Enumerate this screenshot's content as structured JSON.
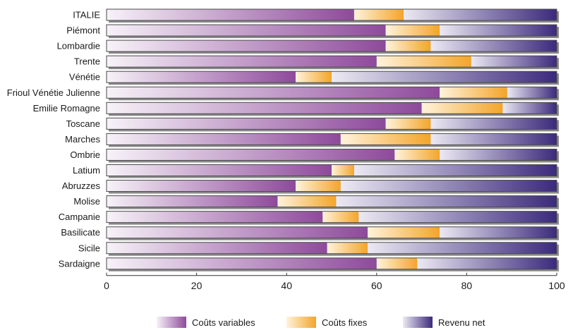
{
  "chart_data": {
    "type": "bar",
    "orientation": "horizontal",
    "stacked": true,
    "categories": [
      "ITALIE",
      "Piémont",
      "Lombardie",
      "Trente",
      "Vénétie",
      "Frioul Vénétie Julienne",
      "Emilie Romagne",
      "Toscane",
      "Marches",
      "Ombrie",
      "Latium",
      "Abruzzes",
      "Molise",
      "Campanie",
      "Basilicate",
      "Sicile",
      "Sardaigne"
    ],
    "series": [
      {
        "name": "Coûts variables",
        "values": [
          55,
          62,
          62,
          60,
          42,
          74,
          70,
          62,
          52,
          64,
          50,
          42,
          38,
          48,
          58,
          49,
          60
        ]
      },
      {
        "name": "Coûts fixes",
        "values": [
          11,
          12,
          10,
          21,
          8,
          15,
          18,
          10,
          20,
          10,
          5,
          10,
          13,
          8,
          16,
          9,
          9
        ]
      },
      {
        "name": "Revenu net",
        "values": [
          34,
          26,
          28,
          19,
          50,
          11,
          12,
          28,
          28,
          26,
          45,
          48,
          49,
          44,
          26,
          42,
          31
        ]
      }
    ],
    "xlim": [
      0,
      100
    ],
    "xticks": [
      "0",
      "20",
      "40",
      "60",
      "80",
      "100"
    ],
    "xlabel": "",
    "ylabel": "",
    "title": "",
    "legend_position": "bottom",
    "colors": {
      "variable_light": "#f7f2f8",
      "variable_dark": "#8e4a9b",
      "fixed_light": "#fff3dc",
      "fixed_dark": "#f3a52a",
      "net_light": "#ece9f3",
      "net_dark": "#3b2a7c",
      "shadow": "#8a8a8a",
      "bar_border": "#4a4a4a"
    }
  }
}
